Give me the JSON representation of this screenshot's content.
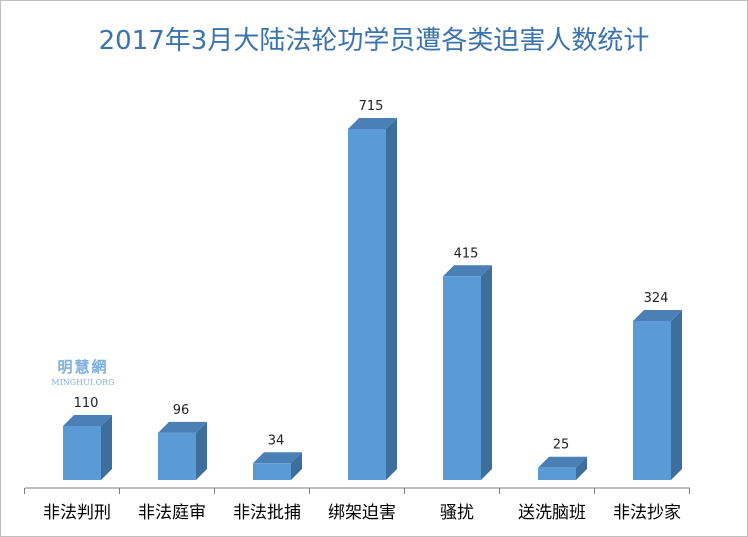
{
  "chart_data": {
    "type": "bar",
    "title": "2017年3月大陆法轮功学员遭各类迫害人数统计",
    "categories": [
      "非法判刑",
      "非法庭审",
      "非法批捕",
      "绑架迫害",
      "骚扰",
      "送洗脑班",
      "非法抄家"
    ],
    "values": [
      110,
      96,
      34,
      715,
      415,
      25,
      324
    ],
    "xlabel": "",
    "ylabel": "",
    "ylim": [
      0,
      750
    ],
    "grid": false,
    "legend": "none",
    "bar_style": "3d",
    "colors": {
      "bar_front": "#5b9bd5",
      "bar_side": "#3e6f9c",
      "bar_top": "#4a80b6",
      "title": "#3a73ad",
      "axis": "#7f7f7f"
    }
  },
  "watermark": {
    "cn": "明慧網",
    "en": "MINGHUI.ORG"
  }
}
